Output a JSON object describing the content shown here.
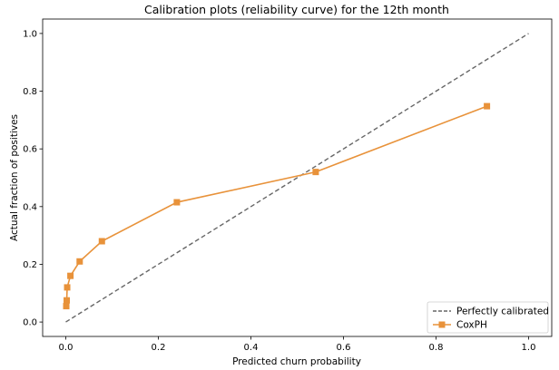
{
  "chart_data": {
    "type": "line",
    "title": "Calibration plots (reliability curve) for the 12th month",
    "xlabel": "Predicted churn probability",
    "ylabel": "Actual fraction of positives",
    "xlim": [
      -0.05,
      1.05
    ],
    "ylim": [
      -0.05,
      1.05
    ],
    "x_ticks": [
      0.0,
      0.2,
      0.4,
      0.6,
      0.8,
      1.0
    ],
    "y_ticks": [
      0.0,
      0.2,
      0.4,
      0.6,
      0.8,
      1.0
    ],
    "grid": false,
    "legend_position": "bottom-right",
    "series": [
      {
        "name": "Perfectly calibrated",
        "style": "dashed",
        "color": "#666666",
        "x": [
          0.0,
          1.0
        ],
        "y": [
          0.0,
          1.0
        ]
      },
      {
        "name": "CoxPH",
        "style": "solid-square-markers",
        "color": "#e8923a",
        "x": [
          0.001,
          0.002,
          0.003,
          0.01,
          0.03,
          0.078,
          0.24,
          0.54,
          0.91
        ],
        "y": [
          0.055,
          0.075,
          0.12,
          0.16,
          0.21,
          0.28,
          0.415,
          0.52,
          0.748
        ]
      }
    ]
  }
}
